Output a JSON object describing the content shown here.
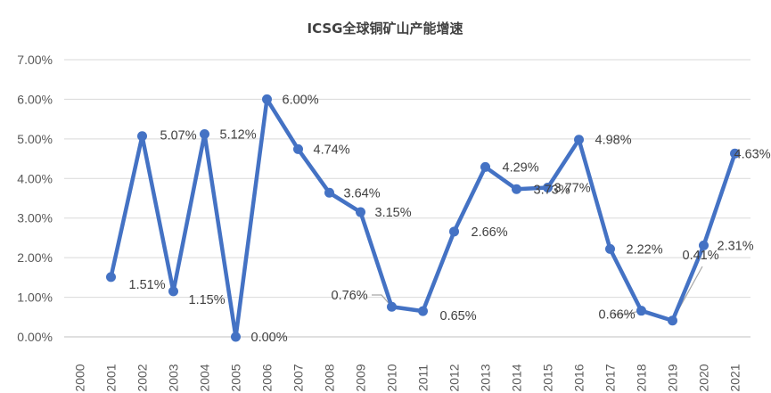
{
  "chart_data": {
    "type": "line",
    "title": "ICSG全球铜矿山产能增速",
    "xlabel": "",
    "ylabel": "",
    "ylim": [
      0,
      7
    ],
    "ytick_labels": [
      "0.00%",
      "1.00%",
      "2.00%",
      "3.00%",
      "4.00%",
      "5.00%",
      "6.00%",
      "7.00%"
    ],
    "grid": true,
    "legend": "none",
    "categories": [
      "2000",
      "2001",
      "2002",
      "2003",
      "2004",
      "2005",
      "2006",
      "2007",
      "2008",
      "2009",
      "2010",
      "2011",
      "2012",
      "2013",
      "2014",
      "2015",
      "2016",
      "2017",
      "2018",
      "2019",
      "2020",
      "2021"
    ],
    "series": [
      {
        "color": "#4472C4",
        "values": [
          null,
          1.51,
          5.07,
          1.15,
          5.12,
          0.0,
          6.0,
          4.74,
          3.64,
          3.15,
          0.76,
          0.65,
          2.66,
          4.29,
          3.73,
          3.77,
          4.98,
          2.22,
          0.66,
          0.41,
          2.31,
          4.63
        ],
        "data_labels": [
          "",
          "1.51%",
          "5.07%",
          "1.15%",
          "5.12%",
          "0.00%",
          "6.00%",
          "4.74%",
          "3.64%",
          "3.15%",
          "0.76%",
          "0.65%",
          "2.66%",
          "4.29%",
          "3.73%",
          "3.77%",
          "4.98%",
          "2.22%",
          "0.66%",
          "0.41%",
          "2.31%",
          "4.63%"
        ]
      }
    ]
  }
}
